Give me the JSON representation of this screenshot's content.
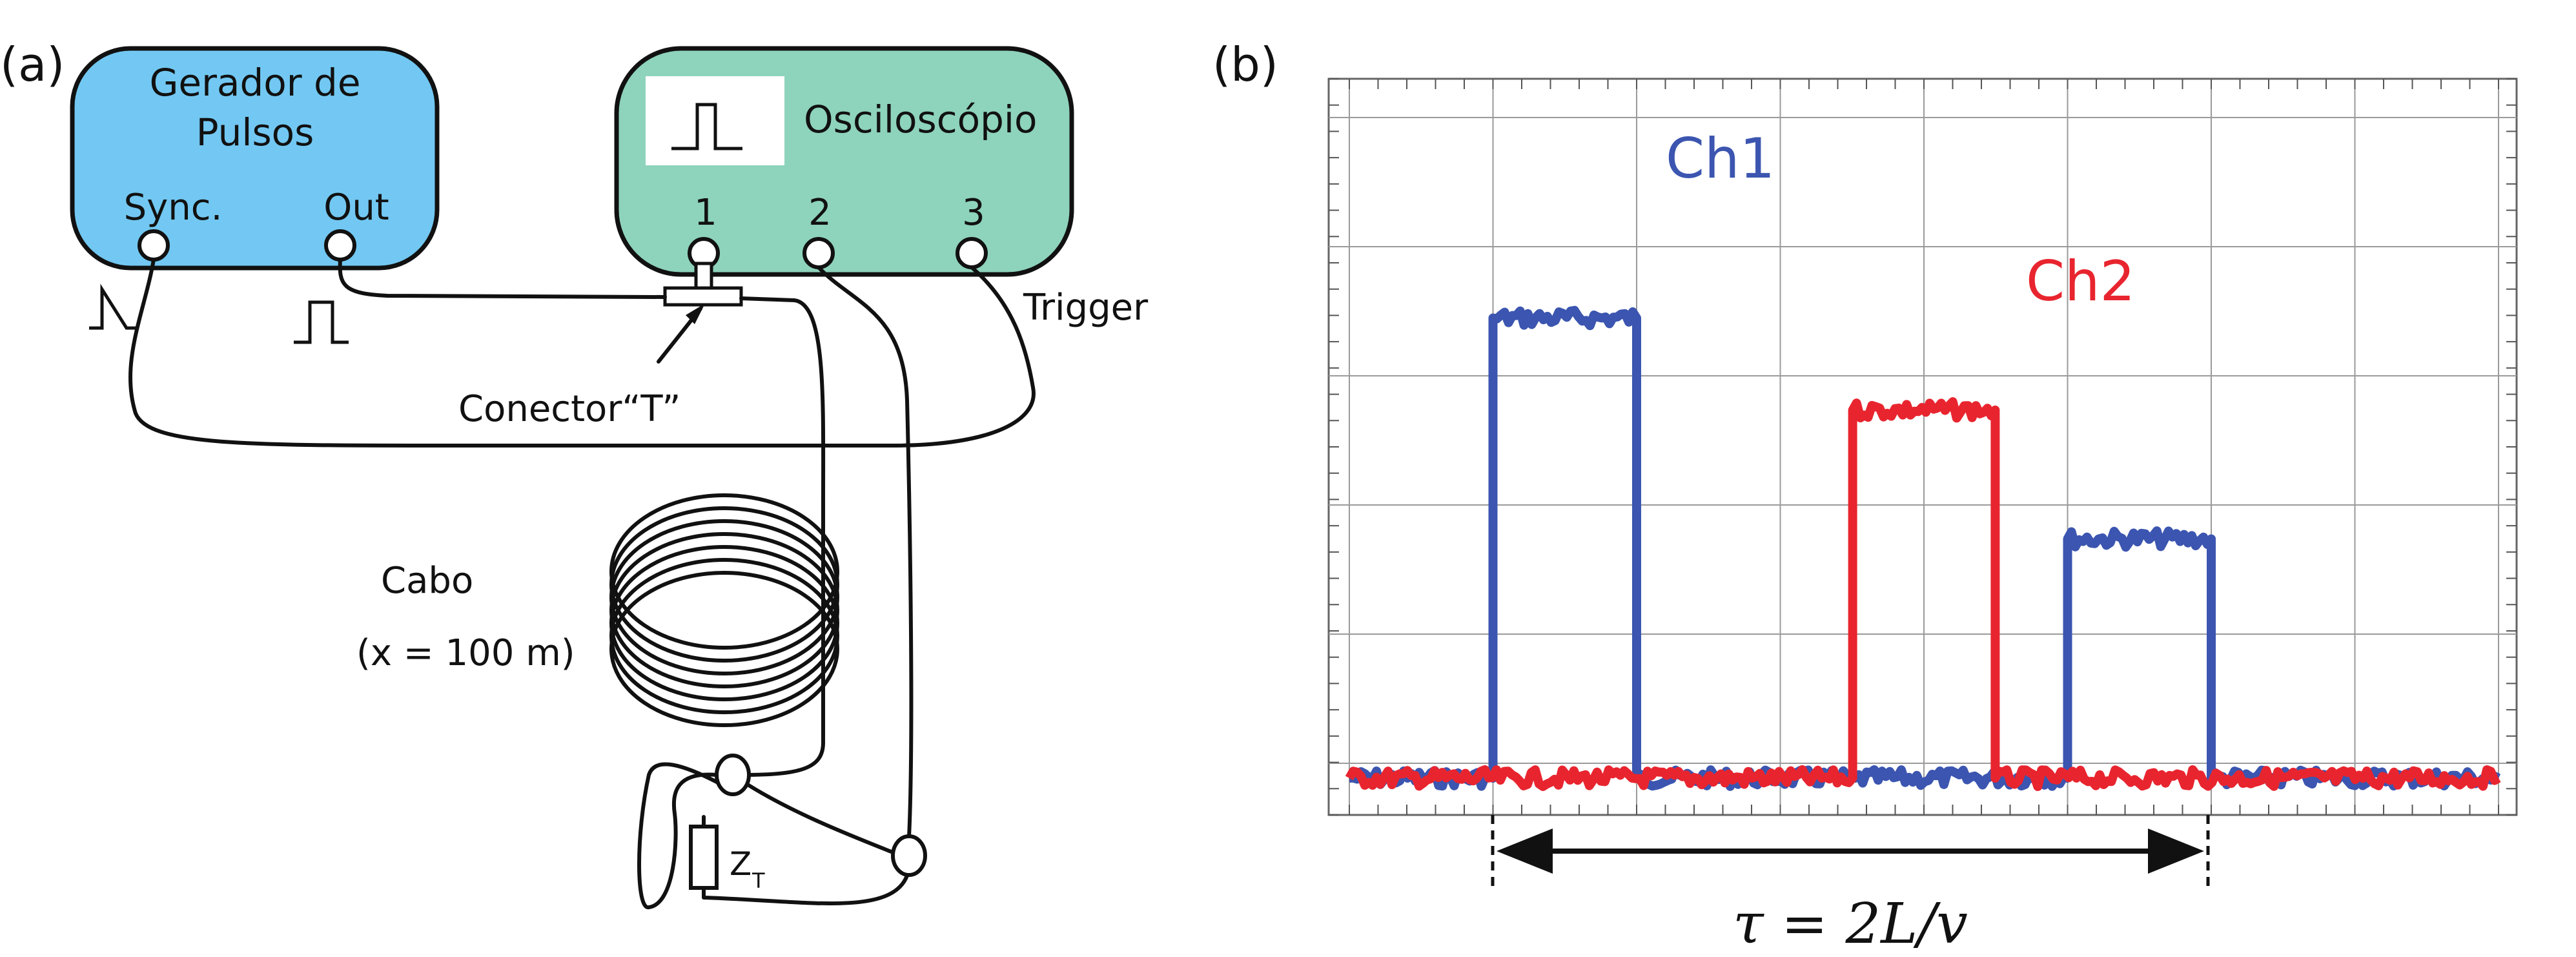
{
  "panel_a": {
    "label": "(a)",
    "pulse_generator": {
      "title_line1": "Gerador de",
      "title_line2": "Pulsos",
      "sync_label": "Sync.",
      "out_label": "Out"
    },
    "oscilloscope": {
      "title": "Osciloscópio",
      "ch1": "1",
      "ch2": "2",
      "ch3": "3"
    },
    "trigger_label": "Trigger",
    "connector_label": "Conector“T”",
    "cable_label": "Cabo",
    "cable_length": "(x = 100 m)",
    "load_label_main": "Z",
    "load_label_sub": "T",
    "colors": {
      "generator": "#72c8f2",
      "oscilloscope": "#8ed3bc",
      "outline": "#111111"
    }
  },
  "panel_b": {
    "label": "(b)",
    "annotation": "τ = 2L/v",
    "chart_data": {
      "type": "line",
      "title": "",
      "xlabel": "",
      "ylabel": "",
      "xlim": [
        0,
        10
      ],
      "ylim": [
        0,
        8
      ],
      "grid": true,
      "legend": "inline labels",
      "series": [
        {
          "name": "Ch1",
          "color": "#3b55b0",
          "x": [
            0,
            1.25,
            1.25,
            2.5,
            2.5,
            4.4,
            4.4,
            6.25,
            6.25,
            7.5,
            7.5,
            10
          ],
          "y": [
            0.4,
            0.4,
            5.4,
            5.4,
            0.4,
            0.4,
            0.4,
            0.4,
            3.0,
            3.0,
            0.4,
            0.4
          ]
        },
        {
          "name": "Ch2",
          "color": "#e8252f",
          "x": [
            0,
            4.38,
            4.38,
            5.62,
            5.62,
            10
          ],
          "y": [
            0.4,
            0.4,
            4.4,
            4.4,
            0.4,
            0.4
          ]
        }
      ]
    }
  }
}
